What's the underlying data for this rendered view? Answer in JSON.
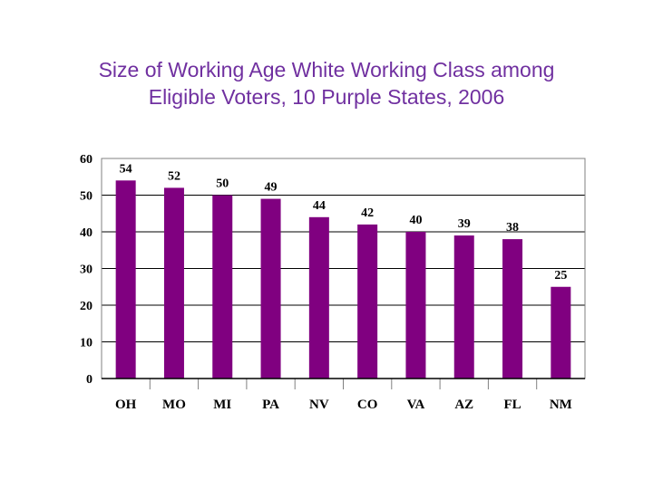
{
  "chart_data": {
    "type": "bar",
    "title_lines": [
      "Size of Working Age White Working Class among",
      "Eligible Voters, 10 Purple States, 2006"
    ],
    "categories": [
      "OH",
      "MO",
      "MI",
      "PA",
      "NV",
      "CO",
      "VA",
      "AZ",
      "FL",
      "NM"
    ],
    "values": [
      54,
      52,
      50,
      49,
      44,
      42,
      40,
      39,
      38,
      25
    ],
    "data_labels": [
      "54",
      "52",
      "50",
      "49",
      "44",
      "42",
      "40",
      "39",
      "38",
      "25"
    ],
    "yticks": [
      "0",
      "10",
      "20",
      "30",
      "40",
      "50",
      "60"
    ],
    "ylim": [
      0,
      60
    ],
    "grid": true,
    "legend": false,
    "colors": {
      "bar": "#800080",
      "title": "#7030a0",
      "grid": "#000000"
    }
  }
}
